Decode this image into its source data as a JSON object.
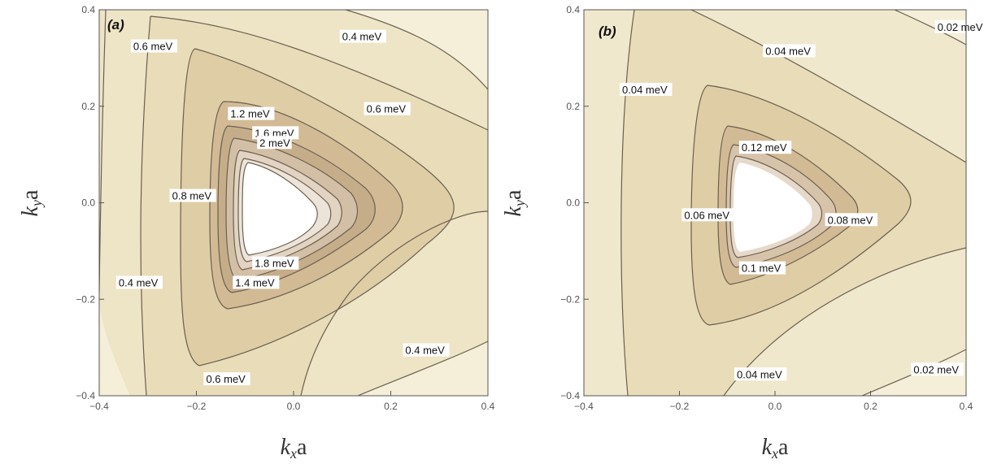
{
  "chart_data": [
    {
      "type": "contour",
      "panel_label": "(a)",
      "xlabel": "kxa",
      "ylabel": "kya",
      "xlim": [
        -0.4,
        0.4
      ],
      "ylim": [
        -0.4,
        0.4
      ],
      "xticks": [
        -0.4,
        -0.2,
        0.0,
        0.2,
        0.4
      ],
      "yticks": [
        -0.4,
        -0.2,
        0.0,
        0.2,
        0.4
      ],
      "xtick_labels": [
        "−0.4",
        "−0.2",
        "0.0",
        "0.2",
        "0.4"
      ],
      "ytick_labels": [
        "−0.4",
        "−0.2",
        "0.0",
        "0.2",
        "0.4"
      ],
      "levels": [
        0.4,
        0.6,
        0.8,
        1.0,
        1.2,
        1.4,
        1.6,
        1.8,
        2.0
      ],
      "level_unit": "meV",
      "contour_labels": [
        {
          "text": "0.4 meV",
          "x": 0.1,
          "y": 0.34
        },
        {
          "text": "0.6 meV",
          "x": -0.33,
          "y": 0.32
        },
        {
          "text": "0.6 meV",
          "x": 0.15,
          "y": 0.19
        },
        {
          "text": "1.2 meV",
          "x": -0.13,
          "y": 0.18
        },
        {
          "text": "1.6 meV",
          "x": -0.08,
          "y": 0.14
        },
        {
          "text": "2 meV",
          "x": -0.07,
          "y": 0.12
        },
        {
          "text": "0.8 meV",
          "x": -0.25,
          "y": 0.01
        },
        {
          "text": "1.8 meV",
          "x": -0.08,
          "y": -0.13
        },
        {
          "text": "1.4 meV",
          "x": -0.12,
          "y": -0.17
        },
        {
          "text": "0.4 meV",
          "x": -0.36,
          "y": -0.17
        },
        {
          "text": "0.4 meV",
          "x": 0.23,
          "y": -0.31
        },
        {
          "text": "0.6 meV",
          "x": -0.18,
          "y": -0.37
        }
      ]
    },
    {
      "type": "contour",
      "panel_label": "(b)",
      "xlabel": "kxa",
      "ylabel": "kya",
      "xlim": [
        -0.4,
        0.4
      ],
      "ylim": [
        -0.4,
        0.4
      ],
      "xticks": [
        -0.4,
        -0.2,
        0.0,
        0.2,
        0.4
      ],
      "yticks": [
        -0.4,
        -0.2,
        0.0,
        0.2,
        0.4
      ],
      "xtick_labels": [
        "−0.4",
        "−0.2",
        "0.0",
        "0.2",
        "0.4"
      ],
      "ytick_labels": [
        "−0.4",
        "−0.2",
        "0.0",
        "0.2",
        "0.4"
      ],
      "levels": [
        0.02,
        0.04,
        0.06,
        0.08,
        0.1,
        0.12
      ],
      "level_unit": "meV",
      "contour_labels": [
        {
          "text": "0.02 meV",
          "x": 0.34,
          "y": 0.36
        },
        {
          "text": "0.04 meV",
          "x": -0.02,
          "y": 0.31
        },
        {
          "text": "0.04 meV",
          "x": -0.32,
          "y": 0.23
        },
        {
          "text": "0.12 meV",
          "x": -0.07,
          "y": 0.11
        },
        {
          "text": "0.06 meV",
          "x": -0.19,
          "y": -0.03
        },
        {
          "text": "0.08 meV",
          "x": 0.11,
          "y": -0.04
        },
        {
          "text": "0.1 meV",
          "x": -0.07,
          "y": -0.14
        },
        {
          "text": "0.04 meV",
          "x": -0.08,
          "y": -0.36
        },
        {
          "text": "0.02 meV",
          "x": 0.29,
          "y": -0.35
        }
      ]
    }
  ]
}
